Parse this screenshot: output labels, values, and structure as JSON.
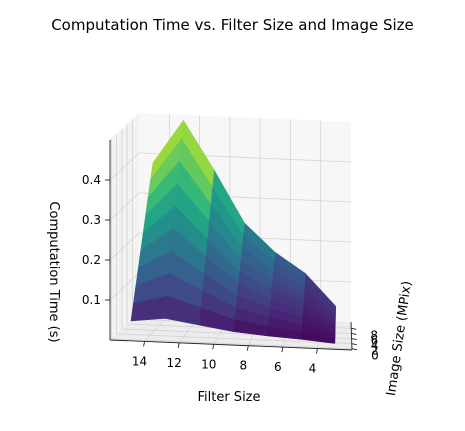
{
  "chart_data": {
    "type": "surface",
    "title": "Computation Time vs. Filter Size and Image Size",
    "xlabel": "Filter Size",
    "ylabel": "Image Size (MPix)",
    "zlabel": "Computation Time (s)",
    "x_ticks": [
      "14",
      "12",
      "10",
      "8",
      "6",
      "4"
    ],
    "y_ticks": [
      "0",
      "2",
      "4",
      "6",
      "8"
    ],
    "z_ticks": [
      "0.1",
      "0.2",
      "0.3",
      "0.4"
    ],
    "colormap": "viridis",
    "grid": true,
    "filter_sizes": [
      3,
      5,
      7,
      9,
      11,
      13,
      15
    ],
    "image_sizes": [
      1,
      2,
      3,
      4,
      5,
      6,
      7,
      8,
      9,
      10
    ],
    "computation_time": [
      [
        0.005,
        0.009,
        0.013,
        0.017,
        0.021,
        0.025,
        0.029,
        0.033,
        0.037,
        0.041
      ],
      [
        0.012,
        0.024,
        0.036,
        0.048,
        0.06,
        0.072,
        0.084,
        0.096,
        0.108,
        0.12
      ],
      [
        0.017,
        0.034,
        0.051,
        0.068,
        0.085,
        0.102,
        0.119,
        0.136,
        0.153,
        0.17
      ],
      [
        0.024,
        0.048,
        0.072,
        0.096,
        0.12,
        0.144,
        0.168,
        0.192,
        0.216,
        0.24
      ],
      [
        0.037,
        0.074,
        0.111,
        0.148,
        0.185,
        0.222,
        0.259,
        0.296,
        0.333,
        0.37
      ],
      [
        0.05,
        0.1,
        0.15,
        0.2,
        0.25,
        0.3,
        0.35,
        0.4,
        0.45,
        0.49
      ],
      [
        0.04,
        0.078,
        0.116,
        0.154,
        0.192,
        0.23,
        0.268,
        0.306,
        0.344,
        0.38
      ]
    ]
  }
}
